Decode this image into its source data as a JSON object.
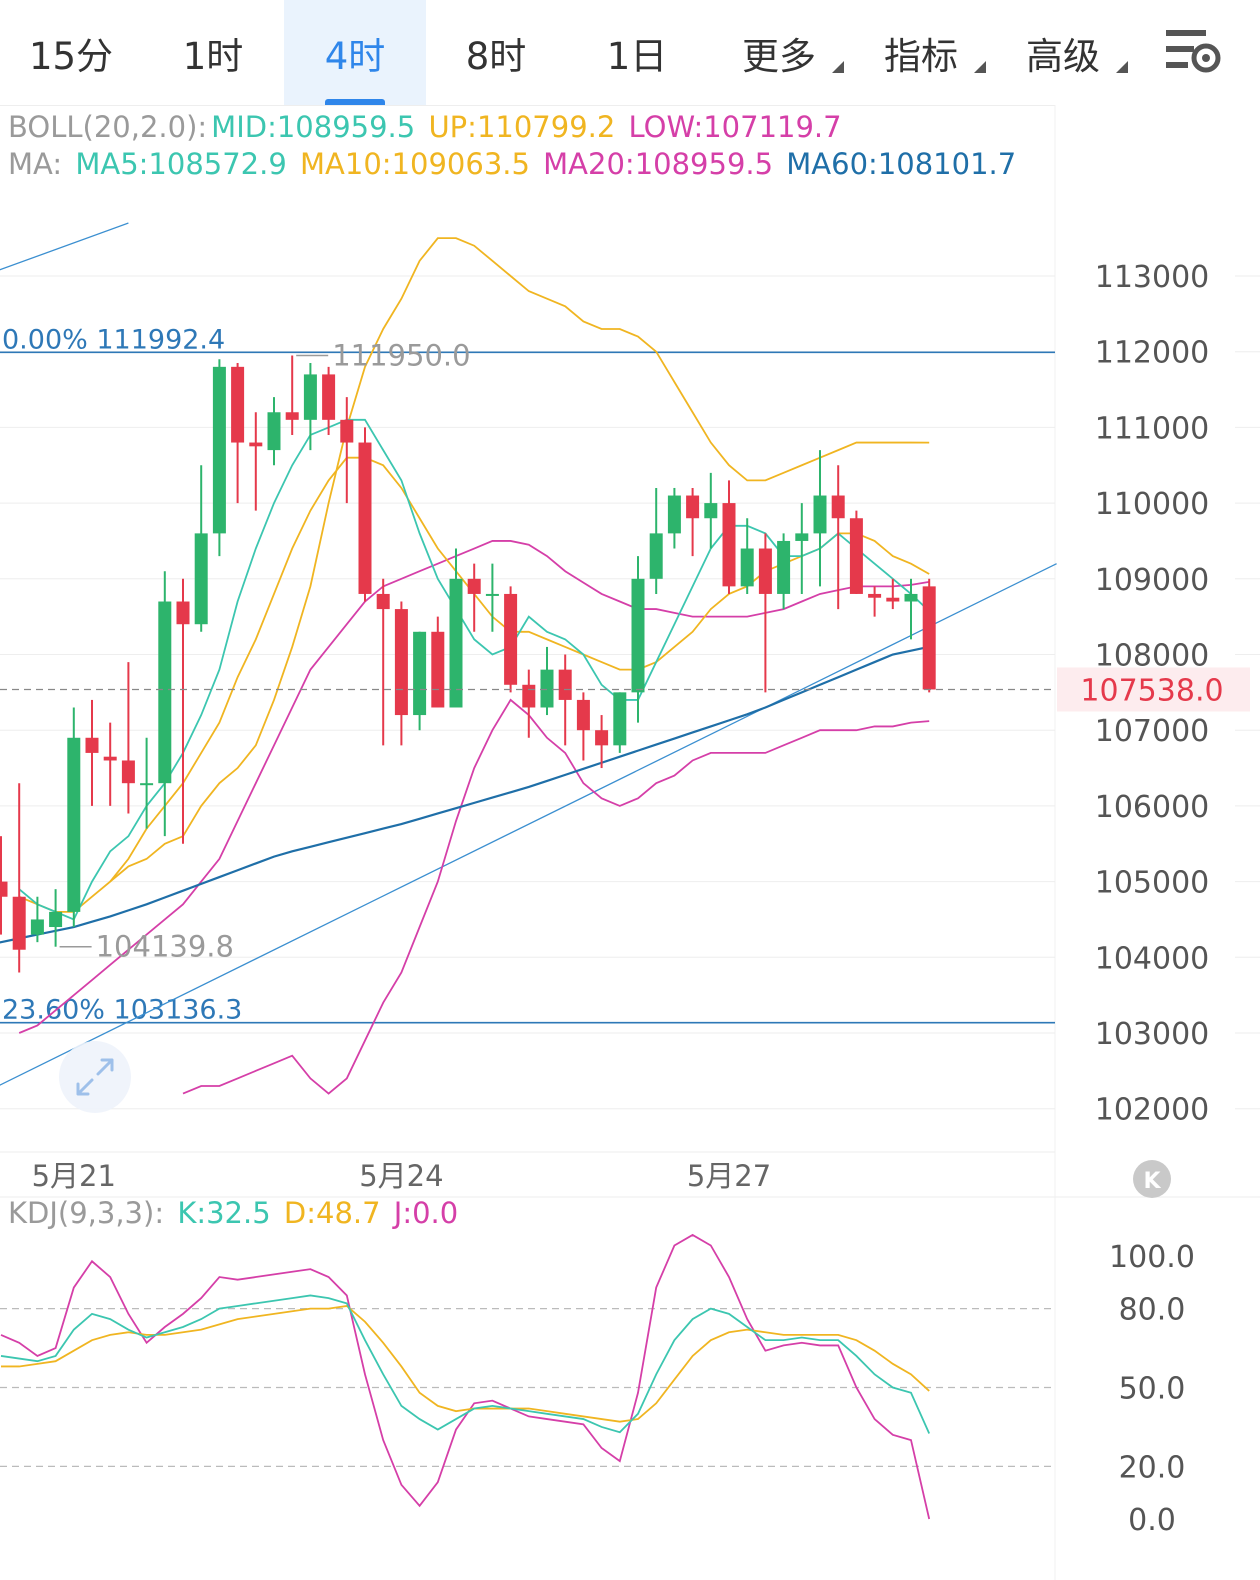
{
  "tabs": [
    {
      "label": "15分",
      "active": false
    },
    {
      "label": "1时",
      "active": false
    },
    {
      "label": "4时",
      "active": true
    },
    {
      "label": "8时",
      "active": false
    },
    {
      "label": "1日",
      "active": false
    },
    {
      "label": "更多",
      "active": false,
      "dropdown": true
    },
    {
      "label": "指标",
      "active": false,
      "dropdown": true
    },
    {
      "label": "高级",
      "active": false,
      "dropdown": true
    }
  ],
  "colors": {
    "up": "#2db46c",
    "down": "#e5394b",
    "ma5": "#3cc6b0",
    "ma10": "#f0b521",
    "ma20": "#d53fa8",
    "ma60": "#1f6fa8",
    "grid": "#eeeeee",
    "fib": "#2e78b7",
    "label_gray": "#9a9a9a"
  },
  "boll": {
    "prefix": "BOLL(20,2.0):",
    "mid": "MID:108959.5",
    "up": "UP:110799.2",
    "low": "LOW:107119.7"
  },
  "ma": {
    "prefix": "MA:",
    "ma5": "MA5:108572.9",
    "ma10": "MA10:109063.5",
    "ma20": "MA20:108959.5",
    "ma60": "MA60:108101.7"
  },
  "kdj": {
    "prefix": "KDJ(9,3,3):",
    "k": "K:32.5",
    "d": "D:48.7",
    "j": "J:0.0"
  },
  "price_axis": [
    "113000",
    "112000",
    "111000",
    "110000",
    "109000",
    "108000",
    "107000",
    "106000",
    "105000",
    "104000",
    "103000",
    "102000"
  ],
  "current_price": "107538.0",
  "fib_top": {
    "text": "0.00% 111992.4",
    "price": 111992.4
  },
  "fib_bottom": {
    "text": "23.60% 103136.3",
    "price": 103136.3
  },
  "high_marker": {
    "text": "111950.0",
    "price": 111950.0
  },
  "low_marker": {
    "text": "104139.8",
    "price": 104139.8
  },
  "date_labels": [
    {
      "text": "5月21",
      "index": 4
    },
    {
      "text": "5月24",
      "index": 22
    },
    {
      "text": "5月27",
      "index": 40
    }
  ],
  "kdj_axis": [
    "100.0",
    "80.0",
    "50.0",
    "20.0",
    "0.0"
  ],
  "chart_data": {
    "type": "candlestick",
    "symbol_interval": "4时",
    "ylim": [
      101500,
      114000
    ],
    "candles": [
      {
        "o": 105000,
        "c": 104800,
        "h": 105600,
        "l": 104300
      },
      {
        "o": 104800,
        "c": 104100,
        "h": 106300,
        "l": 103800
      },
      {
        "o": 104300,
        "c": 104500,
        "h": 104800,
        "l": 104200
      },
      {
        "o": 104400,
        "c": 104600,
        "h": 104900,
        "l": 104139.8
      },
      {
        "o": 104600,
        "c": 106900,
        "h": 107300,
        "l": 104400
      },
      {
        "o": 106900,
        "c": 106700,
        "h": 107400,
        "l": 106000
      },
      {
        "o": 106650,
        "c": 106600,
        "h": 107100,
        "l": 106000
      },
      {
        "o": 106600,
        "c": 106300,
        "h": 107900,
        "l": 105900
      },
      {
        "o": 106300,
        "c": 106300,
        "h": 106900,
        "l": 105700
      },
      {
        "o": 106300,
        "c": 108700,
        "h": 109100,
        "l": 105600
      },
      {
        "o": 108700,
        "c": 108400,
        "h": 109000,
        "l": 105500
      },
      {
        "o": 108400,
        "c": 109600,
        "h": 110500,
        "l": 108300
      },
      {
        "o": 109600,
        "c": 111800,
        "h": 111900,
        "l": 109300
      },
      {
        "o": 111800,
        "c": 110800,
        "h": 111850,
        "l": 110000
      },
      {
        "o": 110800,
        "c": 110750,
        "h": 111200,
        "l": 109900
      },
      {
        "o": 110700,
        "c": 111200,
        "h": 111400,
        "l": 110500
      },
      {
        "o": 111200,
        "c": 111100,
        "h": 111950,
        "l": 110900
      },
      {
        "o": 111100,
        "c": 111700,
        "h": 111850,
        "l": 110700
      },
      {
        "o": 111700,
        "c": 111100,
        "h": 111800,
        "l": 110900
      },
      {
        "o": 111100,
        "c": 110800,
        "h": 111400,
        "l": 110000
      },
      {
        "o": 110800,
        "c": 108800,
        "h": 111000,
        "l": 108700
      },
      {
        "o": 108800,
        "c": 108600,
        "h": 109000,
        "l": 106800
      },
      {
        "o": 108600,
        "c": 107200,
        "h": 108700,
        "l": 106800
      },
      {
        "o": 107200,
        "c": 108300,
        "h": 108300,
        "l": 107000
      },
      {
        "o": 108300,
        "c": 107300,
        "h": 108500,
        "l": 107300
      },
      {
        "o": 107300,
        "c": 109000,
        "h": 109400,
        "l": 107400
      },
      {
        "o": 109000,
        "c": 108800,
        "h": 109200,
        "l": 108300
      },
      {
        "o": 108800,
        "c": 108800,
        "h": 109200,
        "l": 108300
      },
      {
        "o": 108800,
        "c": 107600,
        "h": 108900,
        "l": 107500
      },
      {
        "o": 107600,
        "c": 107300,
        "h": 107800,
        "l": 106900
      },
      {
        "o": 107300,
        "c": 107800,
        "h": 108100,
        "l": 107200
      },
      {
        "o": 107800,
        "c": 107400,
        "h": 108000,
        "l": 106800
      },
      {
        "o": 107400,
        "c": 107000,
        "h": 107500,
        "l": 106600
      },
      {
        "o": 107000,
        "c": 106800,
        "h": 107200,
        "l": 106500
      },
      {
        "o": 106800,
        "c": 107500,
        "h": 107500,
        "l": 106700
      },
      {
        "o": 107500,
        "c": 109000,
        "h": 109300,
        "l": 107100
      },
      {
        "o": 109000,
        "c": 109600,
        "h": 110200,
        "l": 108800
      },
      {
        "o": 109600,
        "c": 110100,
        "h": 110200,
        "l": 109400
      },
      {
        "o": 110100,
        "c": 109800,
        "h": 110200,
        "l": 109300
      },
      {
        "o": 109800,
        "c": 110000,
        "h": 110400,
        "l": 109400
      },
      {
        "o": 110000,
        "c": 108900,
        "h": 110300,
        "l": 108800
      },
      {
        "o": 108900,
        "c": 109400,
        "h": 109800,
        "l": 108800
      },
      {
        "o": 109400,
        "c": 108800,
        "h": 109600,
        "l": 107500
      },
      {
        "o": 108800,
        "c": 109500,
        "h": 109600,
        "l": 108600
      },
      {
        "o": 109500,
        "c": 109600,
        "h": 110000,
        "l": 108800
      },
      {
        "o": 109600,
        "c": 110100,
        "h": 110700,
        "l": 108900
      },
      {
        "o": 110100,
        "c": 109800,
        "h": 110500,
        "l": 108600
      },
      {
        "o": 109800,
        "c": 108800,
        "h": 109900,
        "l": 108800
      },
      {
        "o": 108800,
        "c": 108750,
        "h": 108900,
        "l": 108500
      },
      {
        "o": 108750,
        "c": 108700,
        "h": 109000,
        "l": 108600
      },
      {
        "o": 108700,
        "c": 108800,
        "h": 109000,
        "l": 108200
      },
      {
        "o": 108900,
        "c": 107538,
        "h": 109000,
        "l": 107500
      }
    ],
    "ma5": [
      104900,
      104700,
      104600,
      104500,
      105000,
      105400,
      105600,
      106000,
      106300,
      106700,
      107200,
      107800,
      108700,
      109400,
      110000,
      110500,
      110900,
      111000,
      111100,
      111100,
      110700,
      110300,
      109600,
      109000,
      108600,
      108200,
      108000,
      108100,
      108500,
      108300,
      108200,
      108000,
      107600,
      107400,
      107400,
      107900,
      108400,
      108900,
      109400,
      109700,
      109700,
      109600,
      109300,
      109300,
      109400,
      109600,
      109400,
      109200,
      109000,
      108800,
      108572.9
    ],
    "ma10": [
      104800,
      104700,
      104600,
      104600,
      104800,
      105000,
      105300,
      105700,
      106000,
      106300,
      106700,
      107100,
      107700,
      108200,
      108800,
      109400,
      109900,
      110300,
      110600,
      110600,
      110500,
      110200,
      109800,
      109400,
      109100,
      108800,
      108500,
      108300,
      108300,
      108200,
      108100,
      108000,
      107900,
      107800,
      107800,
      107900,
      108100,
      108300,
      108600,
      108800,
      108900,
      109100,
      109200,
      109300,
      109400,
      109600,
      109600,
      109500,
      109300,
      109200,
      109063.5
    ],
    "ma20": [
      103000,
      103100,
      103300,
      103500,
      103700,
      103900,
      104100,
      104300,
      104500,
      104700,
      105000,
      105300,
      105800,
      106300,
      106800,
      107300,
      107800,
      108100,
      108400,
      108700,
      108900,
      109000,
      109100,
      109200,
      109300,
      109400,
      109500,
      109500,
      109450,
      109300,
      109100,
      108950,
      108800,
      108700,
      108600,
      108600,
      108550,
      108500,
      108500,
      108500,
      108500,
      108550,
      108600,
      108700,
      108800,
      108850,
      108900,
      108900,
      108900,
      108920,
      108959.5
    ],
    "bollUp": [
      105000,
      105200,
      105300,
      105500,
      105600,
      106000,
      106300,
      106500,
      106800,
      107400,
      108100,
      108900,
      110000,
      111000,
      111800,
      112300,
      112700,
      113200,
      113500,
      113500,
      113400,
      113200,
      113000,
      112800,
      112700,
      112600,
      112400,
      112300,
      112300,
      112200,
      112000,
      111600,
      111200,
      110800,
      110500,
      110300,
      110300,
      110400,
      110500,
      110600,
      110700,
      110800,
      110800,
      110800,
      110800,
      110799.2
    ],
    "bollLow": [
      102200,
      102300,
      102300,
      102400,
      102500,
      102600,
      102700,
      102400,
      102200,
      102400,
      102900,
      103400,
      103800,
      104400,
      105000,
      105800,
      106500,
      107000,
      107400,
      107200,
      106900,
      106700,
      106300,
      106100,
      106000,
      106100,
      106300,
      106400,
      106600,
      106700,
      106700,
      106700,
      106700,
      106800,
      106900,
      107000,
      107000,
      107000,
      107050,
      107050,
      107100,
      107119.7
    ],
    "ma60": [
      104000,
      104030,
      104060,
      104100,
      104150,
      104200,
      104250,
      104300,
      104350,
      104400,
      104470,
      104540,
      104620,
      104700,
      104790,
      104880,
      104970,
      105060,
      105150,
      105240,
      105330,
      105400,
      105460,
      105520,
      105580,
      105640,
      105700,
      105760,
      105830,
      105900,
      105970,
      106040,
      106110,
      106180,
      106250,
      106330,
      106410,
      106490,
      106570,
      106650,
      106730,
      106810,
      106890,
      106970,
      107050,
      107130,
      107210,
      107300,
      107400,
      107500,
      107600,
      107700,
      107800,
      107900,
      108000,
      108050,
      108101.7
    ],
    "trend_line": {
      "from": {
        "index": -1,
        "price": 102200
      },
      "to": {
        "index": 58,
        "price": 109200
      }
    },
    "trend_line_top": {
      "from": {
        "index": -1,
        "price": 113000
      },
      "to": {
        "index": 7,
        "price": 113700
      }
    },
    "kdj_k": [
      62,
      61,
      60,
      62,
      72,
      78,
      76,
      72,
      69,
      71,
      73,
      76,
      80,
      81,
      82,
      83,
      84,
      85,
      84,
      82,
      68,
      55,
      43,
      38,
      34,
      38,
      42,
      43,
      42,
      41,
      40,
      39,
      38,
      35,
      33,
      40,
      55,
      68,
      76,
      80,
      78,
      73,
      68,
      68,
      69,
      68,
      68,
      62,
      55,
      50,
      48,
      32.5
    ],
    "kdj_d": [
      58,
      58,
      59,
      60,
      64,
      68,
      70,
      71,
      70,
      70,
      71,
      72,
      74,
      76,
      77,
      78,
      79,
      80,
      80,
      81,
      75,
      67,
      58,
      48,
      43,
      41,
      42,
      42,
      42,
      42,
      41,
      40,
      39,
      38,
      37,
      38,
      44,
      53,
      62,
      68,
      71,
      72,
      71,
      70,
      70,
      70,
      70,
      68,
      64,
      59,
      55,
      48.7
    ],
    "kdj_j": [
      70,
      67,
      62,
      65,
      88,
      98,
      92,
      78,
      67,
      73,
      78,
      84,
      92,
      91,
      92,
      93,
      94,
      95,
      92,
      85,
      55,
      30,
      13,
      5,
      14,
      34,
      44,
      45,
      42,
      39,
      38,
      37,
      36,
      27,
      22,
      48,
      88,
      104,
      108,
      104,
      92,
      76,
      64,
      66,
      67,
      66,
      66,
      50,
      38,
      32,
      30,
      0.0
    ]
  }
}
